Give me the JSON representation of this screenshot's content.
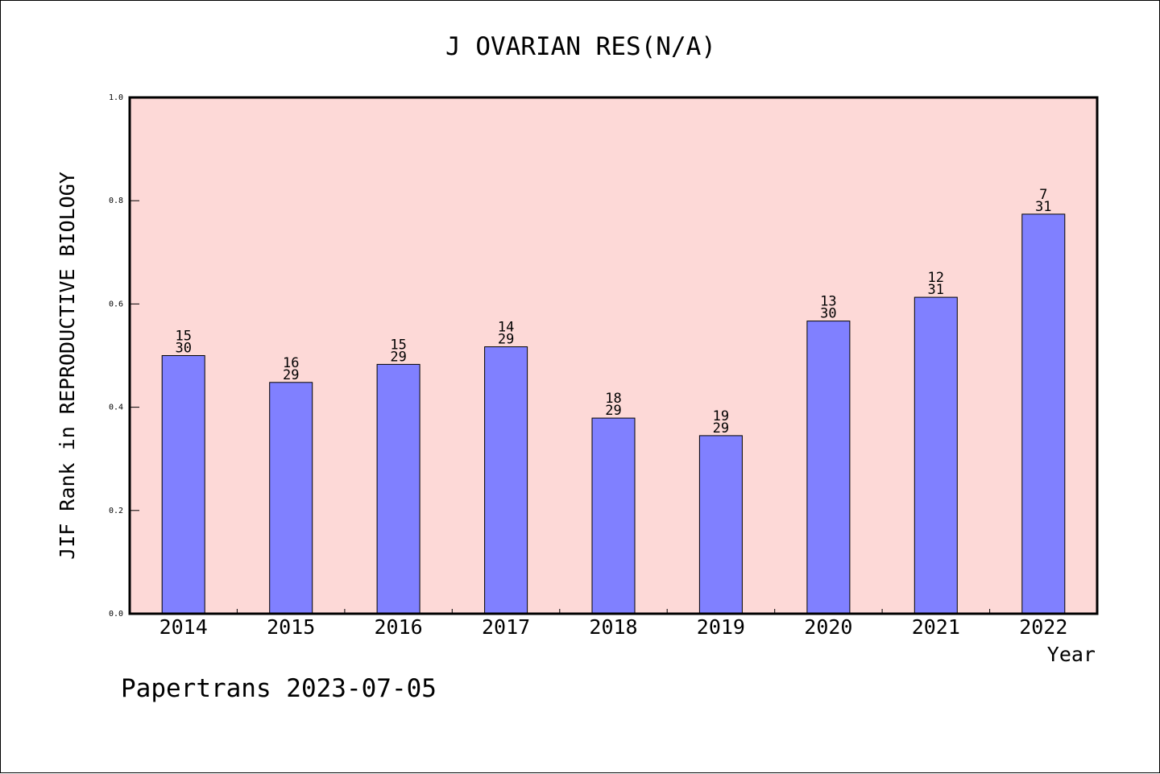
{
  "chart_data": {
    "type": "bar",
    "title": "J OVARIAN RES(N/A)",
    "xlabel": "Year",
    "ylabel": "JIF Rank in REPRODUCTIVE BIOLOGY",
    "ylim": [
      0.0,
      1.0
    ],
    "yticks": [
      "0.0",
      "0.2",
      "0.4",
      "0.6",
      "0.8",
      "1.0"
    ],
    "categories": [
      "2014",
      "2015",
      "2016",
      "2017",
      "2018",
      "2019",
      "2020",
      "2021",
      "2022"
    ],
    "values": [
      0.5,
      0.448,
      0.483,
      0.517,
      0.379,
      0.345,
      0.567,
      0.613,
      0.774
    ],
    "rank": [
      "15",
      "16",
      "15",
      "14",
      "18",
      "19",
      "13",
      "12",
      "7"
    ],
    "total": [
      "30",
      "29",
      "29",
      "29",
      "29",
      "29",
      "30",
      "31",
      "31"
    ],
    "colors": {
      "plot_background": "#fdd9d7",
      "bar_fill": "#8080ff",
      "bar_stroke": "#000000"
    },
    "grid": false
  },
  "footer": {
    "text": "Papertrans 2023-07-05"
  }
}
